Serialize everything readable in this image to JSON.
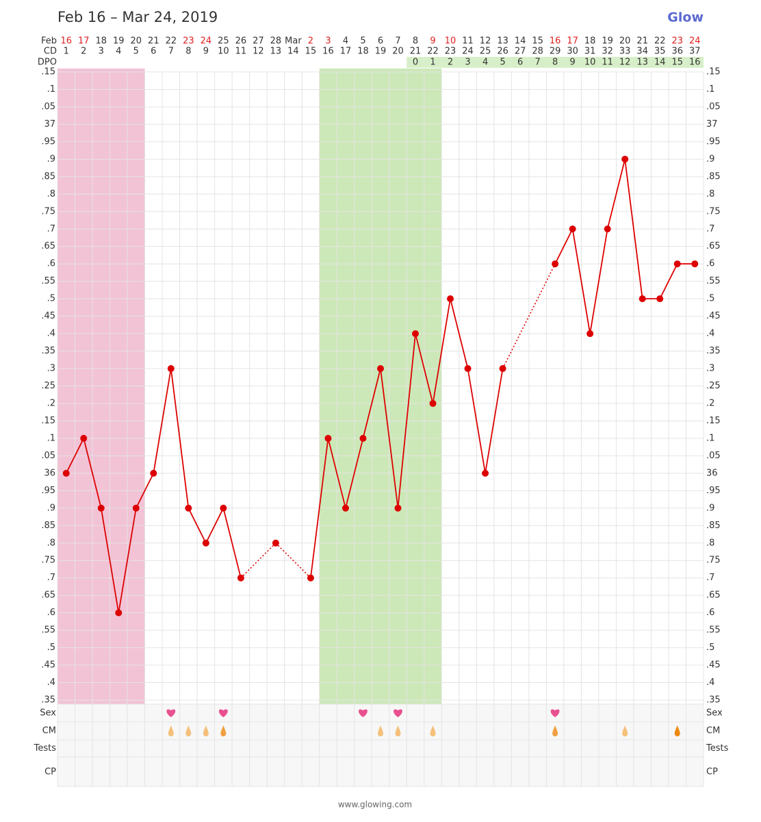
{
  "chart_data": {
    "type": "line",
    "title": "Feb 16 – Mar 24, 2019",
    "brand": "Glow",
    "footer": "www.glowing.com",
    "date_label": "Feb",
    "dates": [
      "16",
      "17",
      "18",
      "19",
      "20",
      "21",
      "22",
      "23",
      "24",
      "25",
      "26",
      "27",
      "28",
      "Mar",
      "2",
      "3",
      "4",
      "5",
      "6",
      "7",
      "8",
      "9",
      "10",
      "11",
      "12",
      "13",
      "14",
      "15",
      "16",
      "17",
      "18",
      "19",
      "20",
      "21",
      "22",
      "23",
      "24"
    ],
    "weekend": [
      true,
      true,
      false,
      false,
      false,
      false,
      false,
      true,
      true,
      false,
      false,
      false,
      false,
      false,
      true,
      true,
      false,
      false,
      false,
      false,
      false,
      true,
      true,
      false,
      false,
      false,
      false,
      false,
      true,
      true,
      false,
      false,
      false,
      false,
      false,
      true,
      true
    ],
    "weekend_color": "#e02020",
    "category_label": "CD",
    "categories": [
      "1",
      "2",
      "3",
      "4",
      "5",
      "6",
      "7",
      "8",
      "9",
      "10",
      "11",
      "12",
      "13",
      "14",
      "15",
      "16",
      "17",
      "18",
      "19",
      "20",
      "21",
      "22",
      "23",
      "24",
      "25",
      "26",
      "27",
      "28",
      "29",
      "30",
      "31",
      "32",
      "33",
      "34",
      "35",
      "36",
      "37"
    ],
    "dpo_label": "DPO",
    "dpo": [
      null,
      null,
      null,
      null,
      null,
      null,
      null,
      null,
      null,
      null,
      null,
      null,
      null,
      null,
      null,
      null,
      null,
      null,
      null,
      null,
      0,
      1,
      2,
      3,
      4,
      5,
      6,
      7,
      8,
      9,
      10,
      11,
      12,
      13,
      14,
      15,
      16
    ],
    "dpo_color": "#d7efc8",
    "series": [
      {
        "name": "BBT",
        "color": "#dd0000",
        "values": [
          36.0,
          36.1,
          35.9,
          35.6,
          35.9,
          36.0,
          36.3,
          35.9,
          35.8,
          35.9,
          35.7,
          null,
          35.8,
          null,
          35.7,
          36.1,
          35.9,
          36.1,
          36.3,
          35.9,
          36.4,
          36.2,
          36.5,
          36.3,
          36.0,
          36.3,
          null,
          null,
          36.6,
          36.7,
          36.4,
          36.7,
          36.9,
          36.5,
          36.5,
          36.6,
          36.6
        ]
      }
    ],
    "ylim": [
      35.35,
      37.15
    ],
    "yticks": [
      {
        "value": 37.15,
        "label": ".15"
      },
      {
        "value": 37.1,
        "label": ".1"
      },
      {
        "value": 37.05,
        "label": ".05"
      },
      37,
      {
        "value": 36.95,
        "label": ".95"
      },
      {
        "value": 36.9,
        "label": ".9"
      },
      {
        "value": 36.85,
        "label": ".85"
      },
      {
        "value": 36.8,
        "label": ".8"
      },
      {
        "value": 36.75,
        "label": ".75"
      },
      {
        "value": 36.7,
        "label": ".7"
      },
      {
        "value": 36.65,
        "label": ".65"
      },
      {
        "value": 36.6,
        "label": ".6"
      },
      {
        "value": 36.55,
        "label": ".55"
      },
      {
        "value": 36.5,
        "label": ".5"
      },
      {
        "value": 36.45,
        "label": ".45"
      },
      {
        "value": 36.4,
        "label": ".4"
      },
      {
        "value": 36.35,
        "label": ".35"
      },
      {
        "value": 36.3,
        "label": ".3"
      },
      {
        "value": 36.25,
        "label": ".25"
      },
      {
        "value": 36.2,
        "label": ".2"
      },
      {
        "value": 36.15,
        "label": ".15"
      },
      {
        "value": 36.1,
        "label": ".1"
      },
      {
        "value": 36.05,
        "label": ".05"
      },
      36,
      {
        "value": 35.95,
        "label": ".95"
      },
      {
        "value": 35.9,
        "label": ".9"
      },
      {
        "value": 35.85,
        "label": ".85"
      },
      {
        "value": 35.8,
        "label": ".8"
      },
      {
        "value": 35.75,
        "label": ".75"
      },
      {
        "value": 35.7,
        "label": ".7"
      },
      {
        "value": 35.65,
        "label": ".65"
      },
      {
        "value": 35.6,
        "label": ".6"
      },
      {
        "value": 35.55,
        "label": ".55"
      },
      {
        "value": 35.5,
        "label": ".5"
      },
      {
        "value": 35.45,
        "label": ".45"
      },
      {
        "value": 35.4,
        "label": ".4"
      },
      {
        "value": 35.35,
        "label": ".35"
      }
    ],
    "grid": true,
    "bands": [
      {
        "from": 1,
        "to": 5,
        "color": "#f2c2d5"
      },
      {
        "from": 16,
        "to": 22,
        "color": "#cde8b8"
      }
    ],
    "rows": [
      "Sex",
      "CM",
      "Tests",
      "CP"
    ],
    "sex": [
      false,
      false,
      false,
      false,
      false,
      false,
      true,
      false,
      false,
      true,
      false,
      false,
      false,
      false,
      false,
      false,
      false,
      true,
      false,
      true,
      false,
      false,
      false,
      false,
      false,
      false,
      false,
      false,
      true,
      false,
      false,
      false,
      false,
      false,
      false,
      false,
      false
    ],
    "sex_color": "#e8508f",
    "cm": [
      null,
      null,
      null,
      null,
      null,
      null,
      "#f5c07a",
      "#f5c07a",
      "#f5c07a",
      "#f0a040",
      null,
      null,
      null,
      null,
      null,
      null,
      null,
      null,
      "#f5c07a",
      "#f5c07a",
      null,
      "#f5c07a",
      null,
      null,
      null,
      null,
      null,
      null,
      "#f0a040",
      null,
      null,
      null,
      "#f5c07a",
      null,
      null,
      "#ee8810",
      null
    ]
  }
}
